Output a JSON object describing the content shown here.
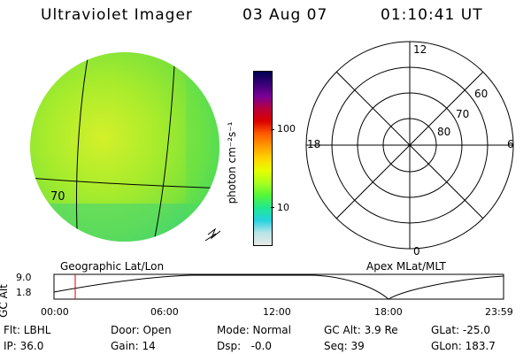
{
  "header": {
    "title": "Ultraviolet Imager",
    "date": "03 Aug 07",
    "time": "01:10:41 UT"
  },
  "colorbar": {
    "label": "photon cm⁻²s⁻¹",
    "ticks": [
      "100",
      "10"
    ],
    "colors": [
      "#000050",
      "#3a0078",
      "#7a0096",
      "#b8003a",
      "#dc0000",
      "#ff5a00",
      "#ff9a00",
      "#ffd400",
      "#e6ff00",
      "#a8ff1e",
      "#54f53a",
      "#20e892",
      "#24d2e0",
      "#b8e4e8",
      "#e8e8e8"
    ]
  },
  "polar": {
    "mlt_labels": [
      "12",
      "18",
      "6",
      "0"
    ],
    "mlat_labels": [
      "60",
      "70",
      "80"
    ]
  },
  "panel_labels": {
    "left": "Geographic Lat/Lon",
    "right": "Apex MLat/MLT"
  },
  "altitude_plot": {
    "axis_label": "GC Alt",
    "y_ticks": [
      "9.0",
      "1.8"
    ],
    "x_ticks": [
      "00:00",
      "06:00",
      "12:00",
      "18:00",
      "23:59"
    ]
  },
  "status": {
    "flt": "Flt: LBHL",
    "ip": "IP: 36.0",
    "door": "Door: Open",
    "gain": "Gain: 14",
    "mode": "Mode: Normal",
    "dsp": "Dsp:   -0.0",
    "gc_alt": "GC Alt: 3.9 Re",
    "seq": "Seq: 39",
    "glat": "GLat: -25.0",
    "glon": "GLon: 183.7"
  },
  "image_fragments": {
    "stray_label": "70"
  }
}
